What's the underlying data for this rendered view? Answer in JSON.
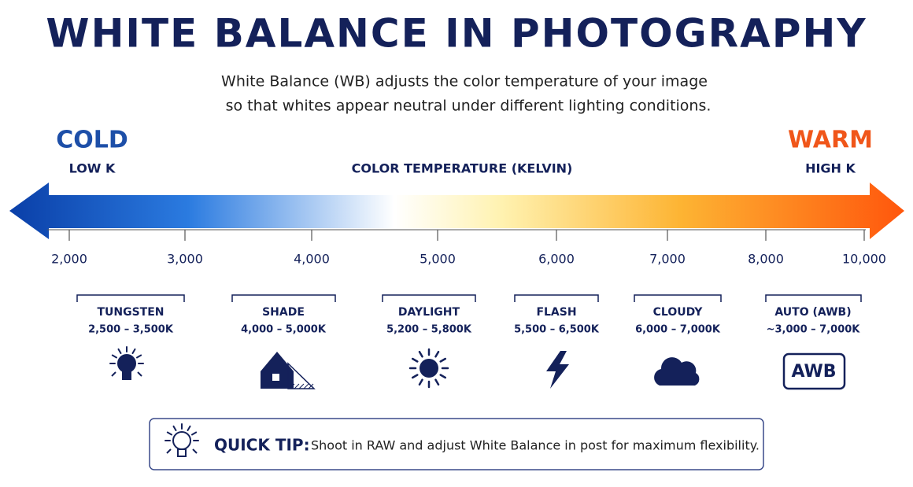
{
  "header": {
    "title": "WHITE BALANCE IN PHOTOGRAPHY",
    "subtitle": [
      "White Balance (WB) adjusts the color temperature of your image",
      "so that whites appear neutral under different lighting conditions."
    ]
  },
  "scale": {
    "left_label": "COLD",
    "left_sublabel": "LOW K",
    "axis_title": "COLOR TEMPERATURE (KELVIN)",
    "right_label": "WARM",
    "right_sublabel": "HIGH K",
    "ticks": [
      "2,000",
      "3,000",
      "4,000",
      "5,000",
      "6,000",
      "7,000",
      "8,000",
      "10,000"
    ]
  },
  "modes": [
    {
      "name": "TUNGSTEN",
      "range": "2,500 – 3,500K"
    },
    {
      "name": "SHADE",
      "range": "4,000 – 5,000K"
    },
    {
      "name": "DAYLIGHT",
      "range": "5,200 – 5,800K"
    },
    {
      "name": "FLASH",
      "range": "5,500 – 6,500K"
    },
    {
      "name": "CLOUDY",
      "range": "6,000 – 7,000K"
    },
    {
      "name": "AUTO (AWB)",
      "range": "~3,000 – 7,000K",
      "icon_text": "AWB"
    }
  ],
  "tip": {
    "label": "QUICK TIP:",
    "text": "Shoot in RAW and adjust White Balance in post for maximum flexibility."
  }
}
